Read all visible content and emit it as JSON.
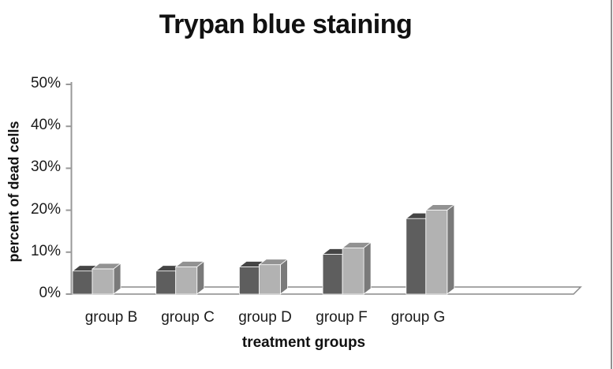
{
  "frame": {
    "background": "#ffffff",
    "right_border_color": "#919191"
  },
  "chart_data": {
    "type": "bar",
    "style": "3d-clustered-column",
    "title": "Trypan blue staining",
    "xlabel": "treatment groups",
    "ylabel": "percent of dead cells",
    "categories": [
      "group B",
      "group C",
      "group D",
      "group F",
      "group G"
    ],
    "series": [
      {
        "name": "series-1-dark-gray",
        "color": "#5e5e5e",
        "color_top": "#454545",
        "color_side": "#3d3d3d",
        "values": [
          5.5,
          5.5,
          6.5,
          9.5,
          18
        ]
      },
      {
        "name": "series-2-light-gray",
        "color": "#b2b2b2",
        "color_top": "#929292",
        "color_side": "#7a7a7a",
        "values": [
          6,
          6.5,
          7,
          11,
          20
        ]
      }
    ],
    "ylim": [
      0,
      50
    ],
    "ytick_values": [
      0,
      10,
      20,
      30,
      40,
      50
    ],
    "yticks": [
      "0%",
      "10%",
      "20%",
      "30%",
      "40%",
      "50%"
    ],
    "grid": false,
    "legend": "none",
    "axis_color": "#999999",
    "floor_outline_color": "#8a8a8a"
  }
}
